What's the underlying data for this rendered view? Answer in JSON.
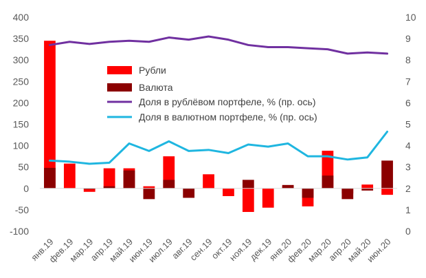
{
  "chart_data": {
    "type": "bar",
    "categories": [
      "янв.19",
      "фев.19",
      "мар.19",
      "апр.19",
      "май.19",
      "июн.19",
      "июл.19",
      "авг.19",
      "сен.19",
      "окт.19",
      "ноя.19",
      "дек.19",
      "янв.20",
      "фев.20",
      "мар.20",
      "апр.20",
      "май.20",
      "июн.20"
    ],
    "ylim": [
      -100,
      400
    ],
    "y_ticks": [
      -100,
      -50,
      0,
      50,
      100,
      150,
      200,
      250,
      300,
      350,
      400
    ],
    "y2lim": [
      0,
      10
    ],
    "y2_ticks": [
      0,
      1,
      2,
      3,
      4,
      5,
      6,
      7,
      8,
      9,
      10
    ],
    "grid": false,
    "legend_position": "center-left",
    "series": [
      {
        "name": "Рубли",
        "kind": "bar",
        "axis": "left",
        "color": "#ff0000",
        "values": [
          345,
          58,
          -8,
          47,
          47,
          5,
          75,
          0,
          33,
          -18,
          -55,
          -45,
          5,
          -42,
          88,
          -12,
          9,
          -15
        ]
      },
      {
        "name": "Валюта",
        "kind": "bar",
        "axis": "left",
        "color": "#8b0000",
        "values": [
          48,
          0,
          -2,
          5,
          42,
          -25,
          20,
          -22,
          0,
          0,
          20,
          0,
          8,
          -22,
          30,
          -25,
          -5,
          65
        ]
      },
      {
        "name": "Доля в рублёвом портфеле, % (пр. ось)",
        "kind": "line",
        "axis": "right",
        "color": "#7030a0",
        "values": [
          8.7,
          8.85,
          8.75,
          8.85,
          8.9,
          8.85,
          9.05,
          8.95,
          9.1,
          8.95,
          8.7,
          8.6,
          8.6,
          8.55,
          8.5,
          8.3,
          8.35,
          8.3
        ]
      },
      {
        "name": "Доля в валютном портфеле, % (пр. ось)",
        "kind": "line",
        "axis": "right",
        "color": "#1fb6e0",
        "values": [
          3.3,
          3.25,
          3.15,
          3.2,
          4.1,
          3.75,
          4.2,
          3.75,
          3.8,
          3.65,
          4.05,
          3.95,
          4.1,
          3.5,
          3.5,
          3.35,
          3.45,
          4.65
        ]
      }
    ]
  }
}
